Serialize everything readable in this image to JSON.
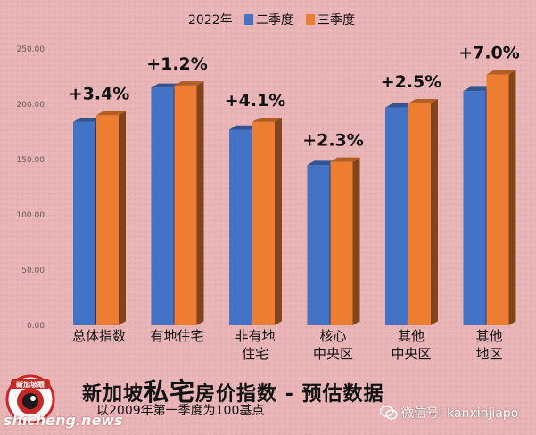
{
  "chart_data": {
    "type": "bar",
    "legend": {
      "prefix": "2022年",
      "placement": "top-center"
    },
    "series": [
      {
        "name": "二季度",
        "color": "#4472c4",
        "values": [
          184,
          215,
          177,
          145,
          197,
          212
        ]
      },
      {
        "name": "三季度",
        "color": "#ed7d31",
        "values": [
          190,
          217,
          184,
          148,
          201,
          227
        ]
      }
    ],
    "categories": [
      [
        "总体指数"
      ],
      [
        "有地住宅"
      ],
      [
        "非有地",
        "住宅"
      ],
      [
        "核心",
        "中央区"
      ],
      [
        "其他",
        "中央区"
      ],
      [
        "其他",
        "地区"
      ]
    ],
    "annotations": [
      "+3.4%",
      "+1.2%",
      "+4.1%",
      "+2.3%",
      "+2.5%",
      "+7.0%"
    ],
    "yticks": [
      "0.00",
      "50.00",
      "100.00",
      "150.00",
      "200.00",
      "250.00"
    ],
    "ylim": [
      0,
      250
    ],
    "grid": false
  },
  "footer": {
    "title_part1": "新加坡",
    "title_part2": "私宅",
    "title_part3": "房价指数 - 预估数据",
    "subtitle": "以2009年第一季度为100基点"
  },
  "watermarks": {
    "left": "shicheng.news",
    "right": "微信号: kanxinjiapo"
  },
  "logo": {
    "text": "新加坡眼"
  }
}
